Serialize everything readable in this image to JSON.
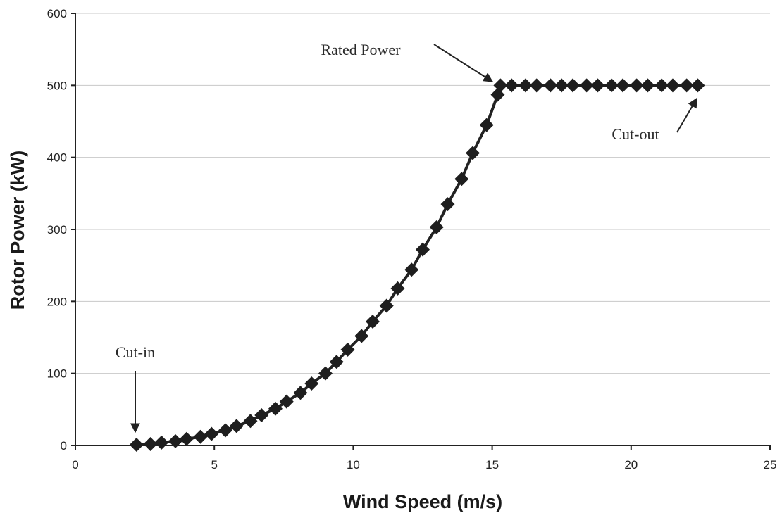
{
  "chart_data": {
    "type": "line",
    "xlabel": "Wind Speed (m/s)",
    "ylabel": "Rotor Power (kW)",
    "xlim": [
      0,
      25
    ],
    "ylim": [
      0,
      600
    ],
    "x_ticks": [
      "0",
      "5",
      "10",
      "15",
      "20",
      "25"
    ],
    "y_ticks": [
      "0",
      "100",
      "200",
      "300",
      "400",
      "500",
      "600"
    ],
    "grid": "horizontal",
    "legend": "none",
    "colors": {
      "series": "#1e1e1e",
      "grid": "#c8c8c8"
    },
    "series": [
      {
        "marker": "diamond",
        "x": [
          2.2,
          2.7,
          3.1,
          3.6,
          4.0,
          4.5,
          4.9,
          5.4,
          5.8,
          6.3,
          6.7,
          7.2,
          7.6,
          8.1,
          8.5,
          9.0,
          9.4,
          9.8,
          10.3,
          10.7,
          11.2,
          11.6,
          12.1,
          12.5,
          13.0,
          13.4,
          13.9,
          14.3,
          14.8,
          15.2,
          15.3,
          15.7,
          16.2,
          16.6,
          17.1,
          17.5,
          17.9,
          18.4,
          18.8,
          19.3,
          19.7,
          20.2,
          20.6,
          21.1,
          21.5,
          22.0,
          22.4
        ],
        "y": [
          1,
          2,
          4,
          6,
          9,
          12,
          16,
          21,
          27,
          34,
          42,
          51,
          61,
          73,
          86,
          100,
          116,
          133,
          152,
          172,
          194,
          218,
          244,
          272,
          303,
          335,
          370,
          406,
          445,
          487,
          500,
          500,
          500,
          500,
          500,
          500,
          500,
          500,
          500,
          500,
          500,
          500,
          500,
          500,
          500,
          500,
          500
        ]
      }
    ],
    "annotations": [
      {
        "text": "Cut-in",
        "x": 2.2,
        "y": 1
      },
      {
        "text": "Rated Power",
        "x": 15.2,
        "y": 500
      },
      {
        "text": "Cut-out",
        "x": 22.4,
        "y": 500
      }
    ]
  }
}
